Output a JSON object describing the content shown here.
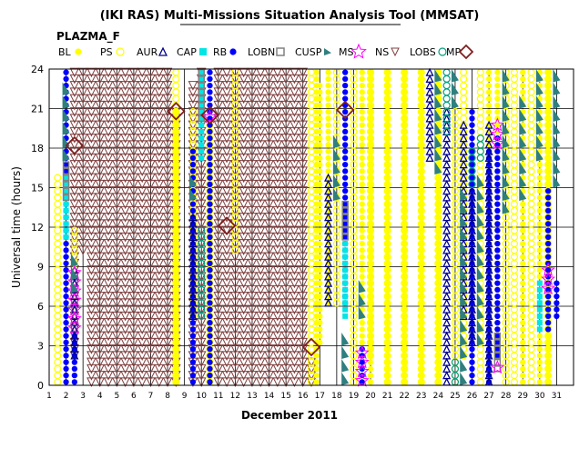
{
  "chart_data": {
    "type": "scatter",
    "title": "(IKI RAS) Multi-Missions Situation Analysis Tool (MMSAT)",
    "subtitle": "PLAZMA_F",
    "xlabel": "December 2011",
    "ylabel": "Universal time (hours)",
    "xlim": [
      1,
      32
    ],
    "ylim": [
      0,
      24
    ],
    "x_ticks": [
      "1",
      "2",
      "3",
      "4",
      "5",
      "6",
      "7",
      "8",
      "9",
      "10",
      "11",
      "12",
      "13",
      "14",
      "15",
      "16",
      "17",
      "18",
      "19",
      "20",
      "21",
      "22",
      "23",
      "24",
      "25",
      "26",
      "27",
      "28",
      "29",
      "30",
      "31"
    ],
    "y_ticks": [
      "0",
      "3",
      "6",
      "9",
      "12",
      "15",
      "18",
      "21",
      "24"
    ],
    "grid": true,
    "legend_position": "top",
    "legend": [
      {
        "key": "BL",
        "name": "BL",
        "color": "#ffff00",
        "marker": "dot"
      },
      {
        "key": "PS",
        "name": "PS",
        "color": "#ffff00",
        "marker": "circle"
      },
      {
        "key": "AUR",
        "name": "AUR",
        "color": "#00008b",
        "marker": "triangle"
      },
      {
        "key": "CAP",
        "name": "CAP",
        "color": "#00e5e5",
        "marker": "square"
      },
      {
        "key": "RB",
        "name": "RB",
        "color": "#0000ff",
        "marker": "dot"
      },
      {
        "key": "LOBN",
        "name": "LOBN",
        "color": "#808080",
        "marker": "square-open"
      },
      {
        "key": "CUSP",
        "name": "CUSP",
        "color": "#2f7f7f",
        "marker": "flag"
      },
      {
        "key": "MS",
        "name": "MS",
        "color": "#ff00ff",
        "marker": "star"
      },
      {
        "key": "NS",
        "name": "NS",
        "color": "#7f3f3f",
        "marker": "triangle-down"
      },
      {
        "key": "LOBS",
        "name": "LOBS",
        "color": "#009f7f",
        "marker": "circle"
      },
      {
        "key": "MP",
        "name": "MP",
        "color": "#7f1f1f",
        "marker": "diamond"
      }
    ],
    "series": [
      {
        "key": "NS",
        "segments": [
          [
            2.5,
            2,
            24
          ],
          [
            3,
            10,
            24
          ],
          [
            3.5,
            0,
            24
          ],
          [
            4,
            0,
            24
          ],
          [
            4.5,
            0,
            24
          ],
          [
            5,
            0,
            24
          ],
          [
            5.5,
            0,
            24
          ],
          [
            6,
            0,
            24
          ],
          [
            6.5,
            0,
            24
          ],
          [
            7,
            0,
            24
          ],
          [
            7.5,
            0,
            24
          ],
          [
            8,
            0,
            24
          ],
          [
            8.5,
            0,
            21
          ],
          [
            9.5,
            0,
            23
          ],
          [
            10,
            0,
            24
          ],
          [
            11,
            0,
            24
          ],
          [
            11.5,
            0,
            24
          ],
          [
            12,
            0,
            24
          ],
          [
            12.5,
            0,
            24
          ],
          [
            13,
            0,
            24
          ],
          [
            13.5,
            0,
            24
          ],
          [
            14,
            0,
            24
          ],
          [
            14.5,
            0,
            24
          ],
          [
            15,
            0,
            24
          ],
          [
            15.5,
            0,
            24
          ],
          [
            16,
            0,
            24
          ],
          [
            16.5,
            0,
            2
          ]
        ]
      },
      {
        "key": "BL",
        "segments": [
          [
            8.5,
            0,
            21
          ],
          [
            9.5,
            0,
            5
          ],
          [
            10.5,
            0,
            20
          ],
          [
            16.8,
            0,
            24
          ],
          [
            17,
            3,
            23
          ],
          [
            17.5,
            6,
            24
          ],
          [
            19.5,
            3,
            24
          ],
          [
            20,
            0,
            24
          ],
          [
            21,
            0,
            24
          ],
          [
            22,
            0,
            24
          ],
          [
            23,
            0,
            24
          ],
          [
            24,
            0,
            24
          ],
          [
            27,
            0,
            24
          ],
          [
            27.5,
            2,
            24
          ],
          [
            29,
            0,
            24
          ],
          [
            30,
            0,
            24
          ],
          [
            30.5,
            0,
            24
          ]
        ]
      },
      {
        "key": "PS",
        "segments": [
          [
            1.5,
            0,
            16
          ],
          [
            2.5,
            9,
            12
          ],
          [
            8.5,
            0,
            24
          ],
          [
            9.5,
            5,
            21
          ],
          [
            10.5,
            0,
            20
          ],
          [
            12,
            10,
            24
          ],
          [
            16.5,
            0,
            24
          ],
          [
            18,
            6,
            24
          ],
          [
            19,
            0,
            24
          ],
          [
            20,
            2,
            24
          ],
          [
            21,
            0,
            24
          ],
          [
            22,
            0,
            24
          ],
          [
            23,
            0,
            24
          ],
          [
            24,
            0,
            24
          ],
          [
            25,
            0,
            21
          ],
          [
            25.5,
            2,
            24
          ],
          [
            26.5,
            0,
            24
          ],
          [
            28,
            0,
            24
          ],
          [
            28.5,
            0,
            24
          ],
          [
            29.5,
            0,
            24
          ],
          [
            30.5,
            0,
            24
          ]
        ]
      },
      {
        "key": "RB",
        "segments": [
          [
            2,
            0,
            24
          ],
          [
            2.5,
            0,
            4
          ],
          [
            9.5,
            0,
            18
          ],
          [
            10.5,
            0,
            24
          ],
          [
            18.5,
            6,
            24
          ],
          [
            19.5,
            0,
            3
          ],
          [
            26,
            0,
            21
          ],
          [
            27,
            0,
            18
          ],
          [
            27.5,
            2,
            19
          ],
          [
            30.5,
            4,
            15
          ],
          [
            31,
            5,
            8
          ]
        ]
      },
      {
        "key": "AUR",
        "segments": [
          [
            2.5,
            2,
            9
          ],
          [
            9.5,
            5,
            13
          ],
          [
            17.5,
            6,
            16
          ],
          [
            23.5,
            17,
            24
          ],
          [
            24.5,
            0,
            21
          ],
          [
            25.5,
            5,
            20
          ],
          [
            26,
            3,
            15
          ],
          [
            27,
            0,
            20
          ]
        ]
      },
      {
        "key": "CAP",
        "segments": [
          [
            2,
            11,
            16
          ],
          [
            10,
            17,
            24
          ],
          [
            18.5,
            5,
            11
          ],
          [
            30,
            4,
            8
          ]
        ]
      },
      {
        "key": "LOBN",
        "segments": [
          [
            2,
            14,
            17
          ],
          [
            10,
            20,
            24
          ],
          [
            18.5,
            11,
            14
          ],
          [
            27.5,
            1,
            4
          ]
        ]
      },
      {
        "key": "LOBS",
        "segments": [
          [
            10,
            5,
            12
          ],
          [
            24.5,
            19,
            24
          ],
          [
            25,
            0,
            2
          ],
          [
            26,
            15,
            18
          ],
          [
            26.5,
            17,
            19
          ]
        ]
      },
      {
        "key": "MS",
        "segments": [
          [
            2.5,
            4,
            9
          ],
          [
            10.5,
            20,
            21
          ],
          [
            19.5,
            0,
            3
          ],
          [
            27.5,
            1,
            2
          ],
          [
            27.5,
            18,
            20
          ],
          [
            30.5,
            7,
            9
          ]
        ]
      },
      {
        "key": "CUSP",
        "segments": [
          [
            2,
            17,
            23
          ],
          [
            2.5,
            7,
            10
          ],
          [
            9.5,
            14,
            16
          ],
          [
            18,
            14,
            19
          ],
          [
            18.5,
            0,
            4
          ],
          [
            19.5,
            5,
            8
          ],
          [
            24,
            16,
            24
          ],
          [
            25,
            21,
            24
          ],
          [
            25.5,
            0,
            15
          ],
          [
            26.5,
            3,
            16
          ],
          [
            28,
            13,
            24
          ],
          [
            29,
            14,
            22
          ],
          [
            30,
            17,
            24
          ],
          [
            31,
            15,
            24
          ]
        ]
      },
      {
        "key": "MP",
        "points": [
          [
            2.5,
            18.2
          ],
          [
            8.5,
            20.8
          ],
          [
            10.5,
            20.5
          ],
          [
            11.5,
            12.1
          ],
          [
            16.5,
            2.9
          ],
          [
            18.5,
            20.9
          ]
        ]
      }
    ]
  }
}
